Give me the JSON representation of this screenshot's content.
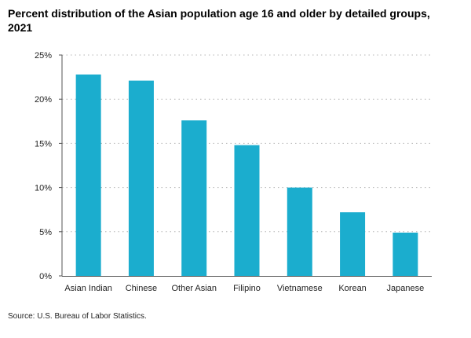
{
  "chart_data": {
    "type": "bar",
    "title": "Percent distribution of the Asian population age 16 and older by detailed groups, 2021",
    "xlabel": "",
    "ylabel": "",
    "categories": [
      "Asian Indian",
      "Chinese",
      "Other Asian",
      "Filipino",
      "Vietnamese",
      "Korean",
      "Japanese"
    ],
    "values": [
      22.8,
      22.1,
      17.6,
      14.8,
      10.0,
      7.2,
      4.9
    ],
    "ylim": [
      0,
      25
    ],
    "yticks": [
      "0%",
      "5%",
      "10%",
      "15%",
      "20%",
      "25%"
    ],
    "ytick_values": [
      0,
      5,
      10,
      15,
      20,
      25
    ],
    "grid": true,
    "bar_color": "#1badce",
    "grid_color": "#b5b5b5"
  },
  "source": "Source: U.S. Bureau of Labor Statistics."
}
